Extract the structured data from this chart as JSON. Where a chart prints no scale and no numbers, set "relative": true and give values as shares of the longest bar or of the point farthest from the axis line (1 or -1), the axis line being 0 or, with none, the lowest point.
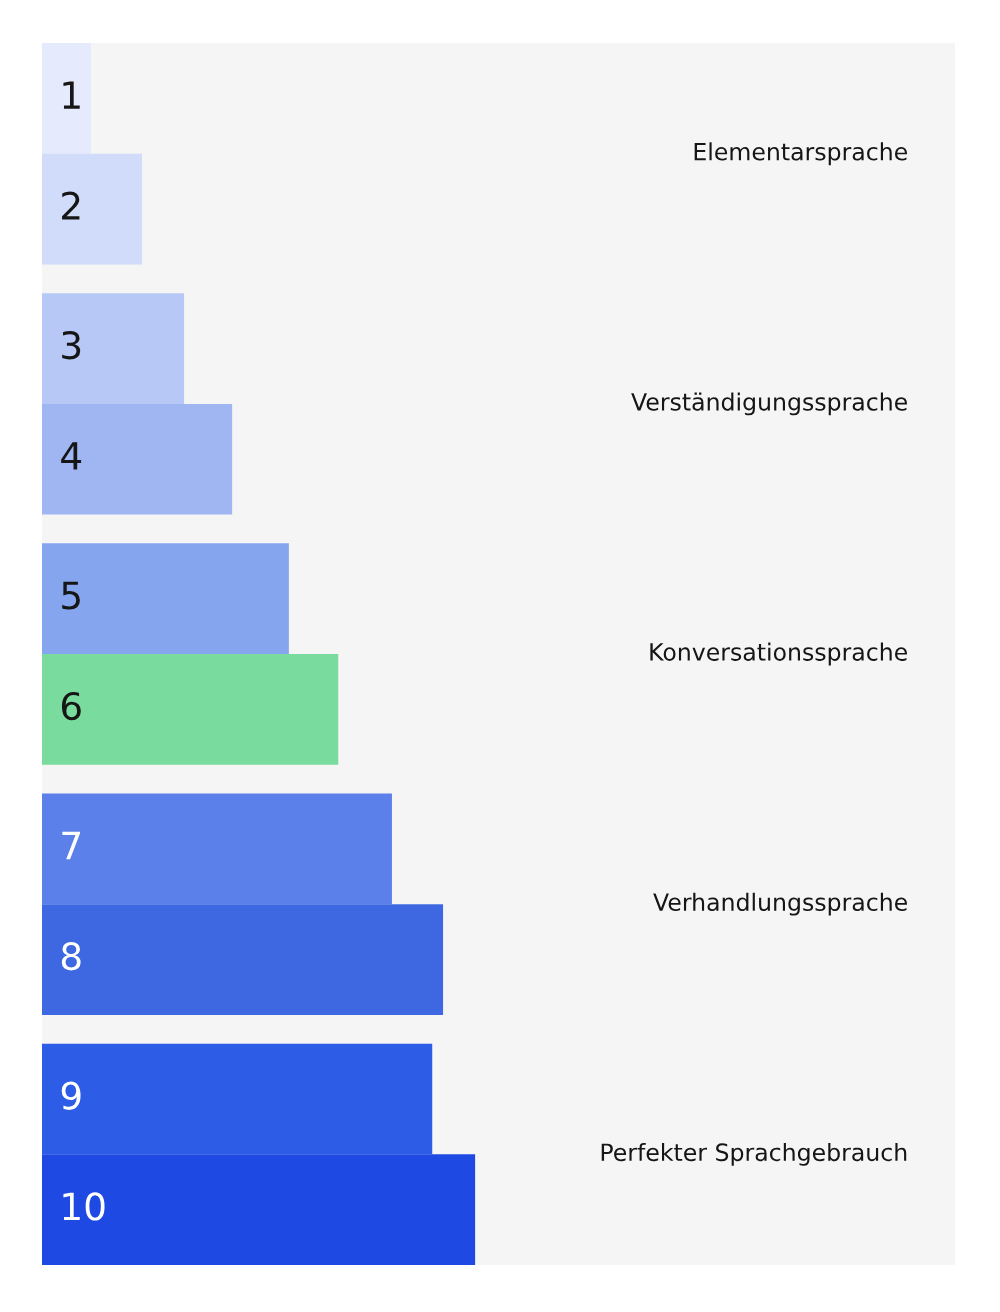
{
  "chart_data": {
    "type": "bar",
    "orientation": "horizontal",
    "relative": true,
    "legend": false,
    "categories": [
      "1",
      "2",
      "3",
      "4",
      "5",
      "6",
      "7",
      "8",
      "9",
      "10"
    ],
    "values": [
      0.113,
      0.231,
      0.328,
      0.439,
      0.57,
      0.684,
      0.808,
      0.926,
      0.901,
      1
    ],
    "colors": [
      "#e5ebfc",
      "#d0dcfa",
      "#b8c8f6",
      "#9fb6f2",
      "#86a5ef",
      "#79db9e",
      "#5b80ea",
      "#3d68e2",
      "#2d5de6",
      "#1e49e2"
    ],
    "annotations": [
      "Elementarsprache",
      "Verständigungssprache",
      "Konversationssprache",
      "Verhandlungssprache",
      "Perfekter Sprachgebrauch"
    ]
  }
}
